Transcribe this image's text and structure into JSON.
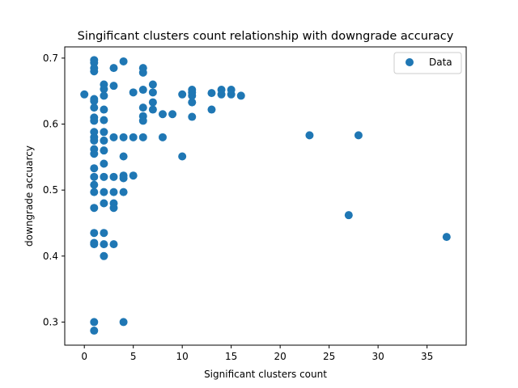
{
  "chart_data": {
    "type": "scatter",
    "title": "Singificant clusters count relationship with downgrade accuracy",
    "xlabel": "Significant clusters count",
    "ylabel": "downgrade accuarcy",
    "xlim": [
      -2,
      39
    ],
    "ylim": [
      0.265,
      0.717
    ],
    "xticks": [
      0,
      5,
      10,
      15,
      20,
      25,
      30,
      35
    ],
    "yticks": [
      0.3,
      0.4,
      0.5,
      0.6,
      0.7
    ],
    "xtick_labels": [
      "0",
      "5",
      "10",
      "15",
      "20",
      "25",
      "30",
      "35"
    ],
    "ytick_labels": [
      "0.3",
      "0.4",
      "0.5",
      "0.6",
      "0.7"
    ],
    "grid": false,
    "legend": "top-right",
    "marker_color": "#1f77b4",
    "series": [
      {
        "name": "Data",
        "points": [
          [
            0,
            0.645
          ],
          [
            1,
            0.697
          ],
          [
            1,
            0.693
          ],
          [
            1,
            0.685
          ],
          [
            1,
            0.68
          ],
          [
            1,
            0.638
          ],
          [
            1,
            0.635
          ],
          [
            1,
            0.625
          ],
          [
            1,
            0.61
          ],
          [
            1,
            0.605
          ],
          [
            1,
            0.588
          ],
          [
            1,
            0.58
          ],
          [
            1,
            0.575
          ],
          [
            1,
            0.562
          ],
          [
            1,
            0.555
          ],
          [
            1,
            0.533
          ],
          [
            1,
            0.52
          ],
          [
            1,
            0.508
          ],
          [
            1,
            0.497
          ],
          [
            1,
            0.473
          ],
          [
            1,
            0.435
          ],
          [
            1,
            0.42
          ],
          [
            1,
            0.418
          ],
          [
            1,
            0.3
          ],
          [
            1,
            0.287
          ],
          [
            2,
            0.66
          ],
          [
            2,
            0.653
          ],
          [
            2,
            0.643
          ],
          [
            2,
            0.622
          ],
          [
            2,
            0.606
          ],
          [
            2,
            0.588
          ],
          [
            2,
            0.575
          ],
          [
            2,
            0.56
          ],
          [
            2,
            0.54
          ],
          [
            2,
            0.52
          ],
          [
            2,
            0.497
          ],
          [
            2,
            0.48
          ],
          [
            2,
            0.435
          ],
          [
            2,
            0.418
          ],
          [
            2,
            0.4
          ],
          [
            3,
            0.685
          ],
          [
            3,
            0.658
          ],
          [
            3,
            0.58
          ],
          [
            3,
            0.52
          ],
          [
            3,
            0.497
          ],
          [
            3,
            0.48
          ],
          [
            3,
            0.473
          ],
          [
            3,
            0.418
          ],
          [
            4,
            0.695
          ],
          [
            4,
            0.58
          ],
          [
            4,
            0.551
          ],
          [
            4,
            0.522
          ],
          [
            4,
            0.518
          ],
          [
            4,
            0.497
          ],
          [
            4,
            0.3
          ],
          [
            5,
            0.648
          ],
          [
            5,
            0.58
          ],
          [
            5,
            0.522
          ],
          [
            6,
            0.685
          ],
          [
            6,
            0.678
          ],
          [
            6,
            0.652
          ],
          [
            6,
            0.625
          ],
          [
            6,
            0.612
          ],
          [
            6,
            0.605
          ],
          [
            6,
            0.58
          ],
          [
            7,
            0.66
          ],
          [
            7,
            0.648
          ],
          [
            7,
            0.633
          ],
          [
            7,
            0.622
          ],
          [
            8,
            0.615
          ],
          [
            8,
            0.58
          ],
          [
            9,
            0.615
          ],
          [
            10,
            0.645
          ],
          [
            10,
            0.551
          ],
          [
            11,
            0.652
          ],
          [
            11,
            0.648
          ],
          [
            11,
            0.643
          ],
          [
            11,
            0.633
          ],
          [
            11,
            0.611
          ],
          [
            13,
            0.647
          ],
          [
            13,
            0.622
          ],
          [
            14,
            0.652
          ],
          [
            14,
            0.645
          ],
          [
            15,
            0.652
          ],
          [
            15,
            0.645
          ],
          [
            16,
            0.643
          ],
          [
            23,
            0.583
          ],
          [
            27,
            0.462
          ],
          [
            28,
            0.583
          ],
          [
            37,
            0.429
          ]
        ]
      }
    ]
  }
}
